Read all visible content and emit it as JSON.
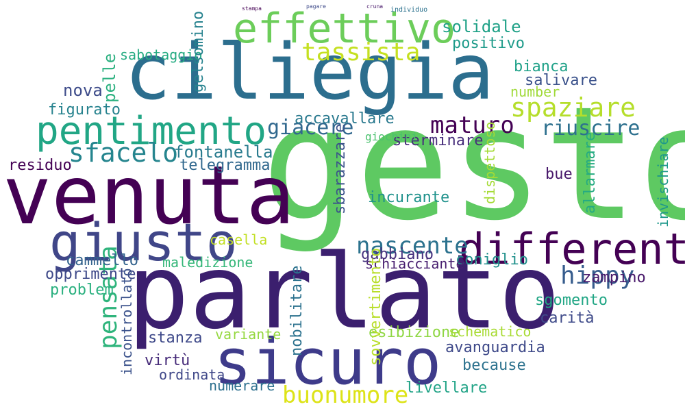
{
  "words": [
    {
      "text": "gesto",
      "color": "#5ec962"
    },
    {
      "text": "parlato",
      "color": "#3b1f6e"
    },
    {
      "text": "ciliegia",
      "color": "#2c6e8e"
    },
    {
      "text": "venuta",
      "color": "#440154"
    },
    {
      "text": "sicuro",
      "color": "#3e3b8a"
    },
    {
      "text": "giusto",
      "color": "#404688"
    },
    {
      "text": "pentimento",
      "color": "#21a685"
    },
    {
      "text": "effettivo",
      "color": "#6ccd5a"
    },
    {
      "text": "different",
      "color": "#440154"
    },
    {
      "text": "tassista",
      "color": "#c5e021"
    },
    {
      "text": "spaziare",
      "color": "#b5de2b"
    },
    {
      "text": "sfacelo",
      "color": "#25858e"
    },
    {
      "text": "giacere",
      "color": "#31688e"
    },
    {
      "text": "maturo",
      "color": "#440154"
    },
    {
      "text": "riuscire",
      "color": "#2d708e"
    },
    {
      "text": "nascente",
      "color": "#2c728e"
    },
    {
      "text": "hippy",
      "color": "#365c8d"
    },
    {
      "text": "pensata",
      "color": "#2fb47c"
    },
    {
      "text": "buonumore",
      "color": "#dde318"
    },
    {
      "text": "fontanella",
      "color": "#297b8e"
    },
    {
      "text": "solidale",
      "color": "#1fa187"
    },
    {
      "text": "positivo",
      "color": "#1e9b8a"
    },
    {
      "text": "bianca",
      "color": "#1fa188"
    },
    {
      "text": "sabotaggio",
      "color": "#25ab82"
    },
    {
      "text": "nova",
      "color": "#3e4c8a"
    },
    {
      "text": "pelle",
      "color": "#2ab07f"
    },
    {
      "text": "gelsomino",
      "color": "#26828e"
    },
    {
      "text": "salivare",
      "color": "#3b528b"
    },
    {
      "text": "number",
      "color": "#a0da39"
    },
    {
      "text": "figurato",
      "color": "#26828e"
    },
    {
      "text": "accavallare",
      "color": "#29798e"
    },
    {
      "text": "sterminare",
      "color": "#472d7b"
    },
    {
      "text": "residuo",
      "color": "#440154"
    },
    {
      "text": "telegramma",
      "color": "#31688e"
    },
    {
      "text": "incurante",
      "color": "#20928c"
    },
    {
      "text": "sbarazzare",
      "color": "#3b528b"
    },
    {
      "text": "bue",
      "color": "#48186a"
    },
    {
      "text": "cammello",
      "color": "#33638d"
    },
    {
      "text": "maledizione",
      "color": "#35b779"
    },
    {
      "text": "casella",
      "color": "#c2df23"
    },
    {
      "text": "coniglio",
      "color": "#21918c"
    },
    {
      "text": "zampino",
      "color": "#48186a"
    },
    {
      "text": "opprimente",
      "color": "#3e4989"
    },
    {
      "text": "gabbiano",
      "color": "#46327e"
    },
    {
      "text": "schiacciante",
      "color": "#481f70"
    },
    {
      "text": "problem",
      "color": "#2ab07f"
    },
    {
      "text": "sgomento",
      "color": "#21a685"
    },
    {
      "text": "carità",
      "color": "#3e4a89"
    },
    {
      "text": "stanza",
      "color": "#3e4989"
    },
    {
      "text": "variante",
      "color": "#95d840"
    },
    {
      "text": "esibizione",
      "color": "#8fd744"
    },
    {
      "text": "schematico",
      "color": "#a8db34"
    },
    {
      "text": "avanguardia",
      "color": "#3e4989"
    },
    {
      "text": "because",
      "color": "#2c728e"
    },
    {
      "text": "virtù",
      "color": "#472c7a"
    },
    {
      "text": "ordinata",
      "color": "#3f4788"
    },
    {
      "text": "numerare",
      "color": "#2d708e"
    },
    {
      "text": "livellare",
      "color": "#20a386"
    },
    {
      "text": "incontrollato",
      "color": "#3b528b"
    },
    {
      "text": "nobilitare",
      "color": "#2c728e"
    },
    {
      "text": "sovvertimento",
      "color": "#b8de29"
    },
    {
      "text": "invischiare",
      "color": "#1f988b"
    },
    {
      "text": "allarmare",
      "color": "#25ab82"
    },
    {
      "text": "dispettoso",
      "color": "#a5db36"
    },
    {
      "text": "giochini",
      "color": "#4ac16d"
    },
    {
      "text": "stampa",
      "color": "#440154"
    },
    {
      "text": "pagare",
      "color": "#3e4a89"
    },
    {
      "text": "cruna",
      "color": "#48186a"
    },
    {
      "text": "individuo",
      "color": "#2c728e"
    }
  ]
}
